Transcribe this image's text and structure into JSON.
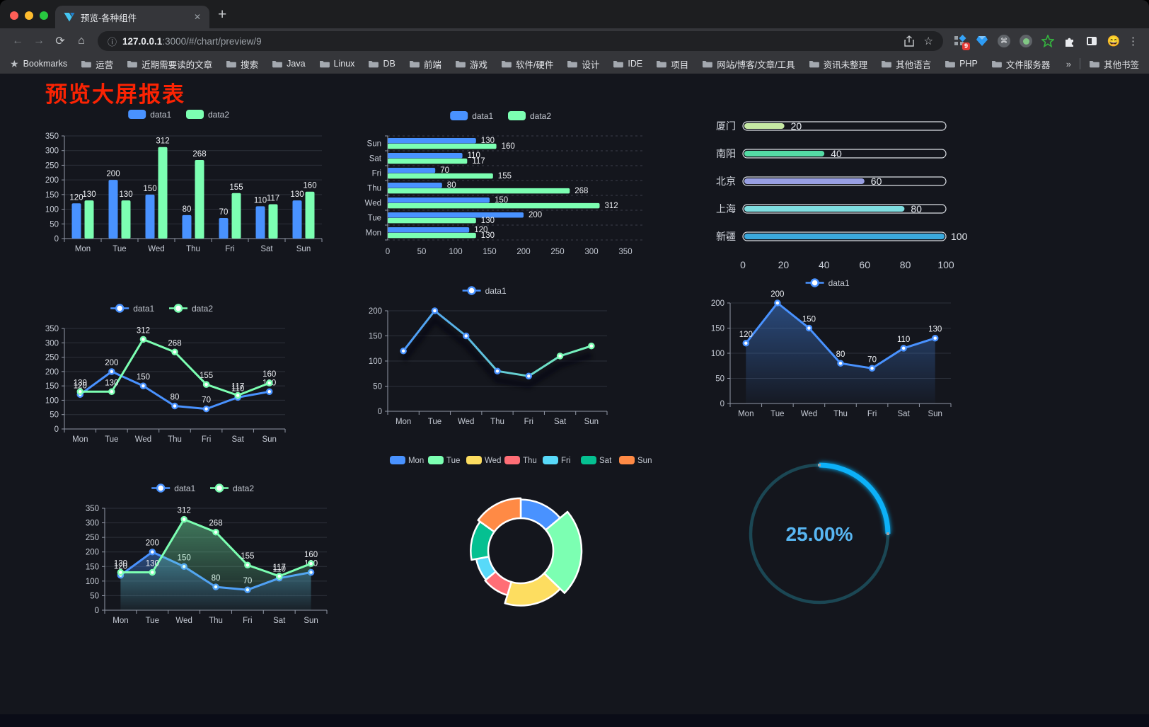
{
  "browser": {
    "tab_title": "预览-各种组件",
    "tab_close": "✕",
    "new_tab": "+",
    "url_host": "127.0.0.1",
    "url_rest": ":3000/#/chart/preview/9",
    "bookmarks_label": "Bookmarks",
    "folders": [
      "运营",
      "近期需要读的文章",
      "搜索",
      "Java",
      "Linux",
      "DB",
      "前端",
      "游戏",
      "软件/硬件",
      "设计",
      "IDE",
      "项目",
      "网站/博客/文章/工具",
      "资讯未整理",
      "其他语言",
      "PHP",
      "文件服务器"
    ],
    "overflow_chevron": "»",
    "other_bookmarks": "其他书签",
    "extension_badge": "9",
    "back": "←",
    "forward": "→",
    "reload": "⟳",
    "home": "⌂",
    "secure_glyph": "ⓘ",
    "star_glyph": "☆",
    "kebab": "⋮",
    "cmd_glyph": "⌘",
    "emoji_glyph": "😄"
  },
  "page": {
    "title": "预览大屏报表",
    "title_color": "#fb2303"
  },
  "chart_data": [
    {
      "id": "grouped-bar",
      "type": "bar",
      "render": "vbar",
      "title": "",
      "categories": [
        "Mon",
        "Tue",
        "Wed",
        "Thu",
        "Fri",
        "Sat",
        "Sun"
      ],
      "series": [
        {
          "name": "data1",
          "color": "#4992ff",
          "values": [
            120,
            200,
            150,
            80,
            70,
            110,
            130
          ]
        },
        {
          "name": "data2",
          "color": "#7cffb2",
          "values": [
            130,
            130,
            312,
            268,
            155,
            117,
            160
          ]
        }
      ],
      "ylim": [
        0,
        350
      ],
      "ytick": 50,
      "legend_position": "top",
      "grid": true,
      "value_labels": true
    },
    {
      "id": "grouped-hbar",
      "type": "bar",
      "render": "hbar",
      "orientation": "horizontal",
      "categories": [
        "Mon",
        "Tue",
        "Wed",
        "Thu",
        "Fri",
        "Sat",
        "Sun"
      ],
      "series": [
        {
          "name": "data1",
          "color": "#4992ff",
          "values": [
            120,
            200,
            150,
            80,
            70,
            110,
            130
          ]
        },
        {
          "name": "data2",
          "color": "#7cffb2",
          "values": [
            130,
            130,
            312,
            268,
            155,
            117,
            160
          ]
        }
      ],
      "xlim": [
        0,
        350
      ],
      "xtick": 50,
      "legend_position": "top",
      "value_labels": true
    },
    {
      "id": "city-progress",
      "type": "bar",
      "render": "progress",
      "orientation": "horizontal",
      "style": "progress",
      "categories": [
        "厦门",
        "南阳",
        "北京",
        "上海",
        "新疆"
      ],
      "values": [
        20,
        40,
        60,
        80,
        100
      ],
      "colors": [
        "#c6e8a4",
        "#54dba5",
        "#989fe3",
        "#7fdde0",
        "#3ba9dd"
      ],
      "xlim": [
        0,
        100
      ],
      "xticks": [
        0,
        20,
        40,
        60,
        80,
        100
      ],
      "value_labels": true
    },
    {
      "id": "two-line",
      "type": "line",
      "render": "line",
      "categories": [
        "Mon",
        "Tue",
        "Wed",
        "Thu",
        "Fri",
        "Sat",
        "Sun"
      ],
      "series": [
        {
          "name": "data1",
          "color": "#4992ff",
          "values": [
            120,
            200,
            150,
            80,
            70,
            110,
            130
          ]
        },
        {
          "name": "data2",
          "color": "#7cffb2",
          "values": [
            130,
            130,
            312,
            268,
            155,
            117,
            160
          ]
        }
      ],
      "ylim": [
        0,
        350
      ],
      "ytick": 50,
      "legend_position": "top",
      "value_labels": true,
      "area": false
    },
    {
      "id": "gradient-line",
      "type": "line",
      "render": "line",
      "categories": [
        "Mon",
        "Tue",
        "Wed",
        "Thu",
        "Fri",
        "Sat",
        "Sun"
      ],
      "series": [
        {
          "name": "data1",
          "color_gradient": [
            "#4992ff",
            "#7cffb2"
          ],
          "values": [
            120,
            200,
            150,
            80,
            70,
            110,
            130
          ]
        }
      ],
      "ylim": [
        0,
        200
      ],
      "ytick": 50,
      "legend_position": "top",
      "value_labels": false,
      "area": false,
      "shadow": true
    },
    {
      "id": "area-line",
      "type": "area",
      "render": "line",
      "categories": [
        "Mon",
        "Tue",
        "Wed",
        "Thu",
        "Fri",
        "Sat",
        "Sun"
      ],
      "series": [
        {
          "name": "data1",
          "color": "#4992ff",
          "values": [
            120,
            200,
            150,
            80,
            70,
            110,
            130
          ]
        }
      ],
      "ylim": [
        0,
        200
      ],
      "ytick": 50,
      "legend_position": "top",
      "value_labels": true,
      "area": true
    },
    {
      "id": "two-area",
      "type": "area",
      "render": "line",
      "categories": [
        "Mon",
        "Tue",
        "Wed",
        "Thu",
        "Fri",
        "Sat",
        "Sun"
      ],
      "series": [
        {
          "name": "data1",
          "color": "#4992ff",
          "values": [
            120,
            200,
            150,
            80,
            70,
            110,
            130
          ]
        },
        {
          "name": "data2",
          "color": "#7cffb2",
          "values": [
            130,
            130,
            312,
            268,
            155,
            117,
            160
          ]
        }
      ],
      "ylim": [
        0,
        350
      ],
      "ytick": 50,
      "legend_position": "top",
      "value_labels": true,
      "area": true
    },
    {
      "id": "rose-pie",
      "type": "pie",
      "render": "pie",
      "style": "rose-donut",
      "categories": [
        "Mon",
        "Tue",
        "Wed",
        "Thu",
        "Fri",
        "Sat",
        "Sun"
      ],
      "values": [
        120,
        200,
        150,
        80,
        70,
        110,
        130
      ],
      "colors": [
        "#4992ff",
        "#7cffb2",
        "#fddd60",
        "#ff6e76",
        "#58d9f9",
        "#05c091",
        "#ff8a45"
      ],
      "legend_position": "top"
    },
    {
      "id": "progress-gauge",
      "type": "gauge",
      "render": "gauge",
      "value": 25,
      "label": "25.00%",
      "arc_color": "#10b1f8",
      "track_color": "#1b4754",
      "text_color": "#58b6f2"
    }
  ]
}
